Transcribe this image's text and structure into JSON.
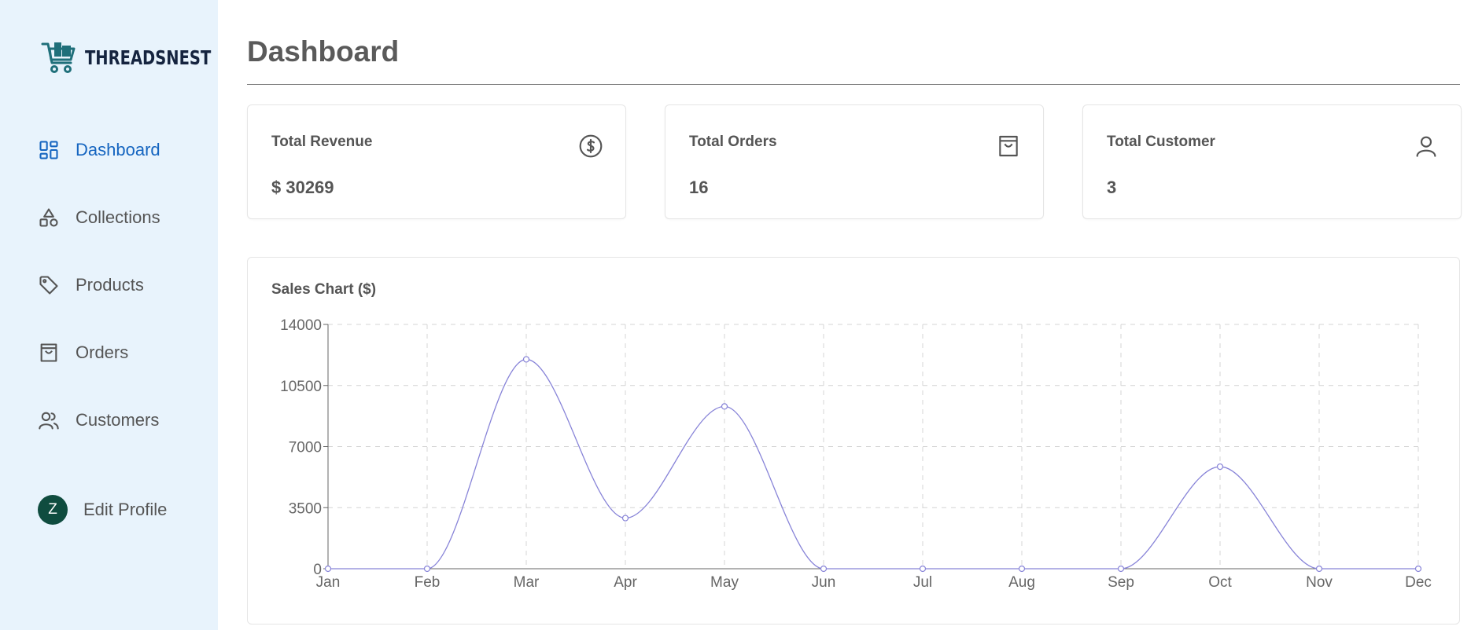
{
  "brand": {
    "name": "THREADSNEST",
    "logo_icon": "shopping-cart-icon"
  },
  "sidebar": {
    "items": [
      {
        "label": "Dashboard",
        "icon": "dashboard-grid-icon",
        "active": true
      },
      {
        "label": "Collections",
        "icon": "shapes-icon",
        "active": false
      },
      {
        "label": "Products",
        "icon": "tag-icon",
        "active": false
      },
      {
        "label": "Orders",
        "icon": "shopping-bag-icon",
        "active": false
      },
      {
        "label": "Customers",
        "icon": "users-icon",
        "active": false
      }
    ],
    "profile": {
      "initial": "Z",
      "label": "Edit Profile"
    }
  },
  "header": {
    "title": "Dashboard"
  },
  "cards": [
    {
      "label": "Total Revenue",
      "value": "$ 30269",
      "icon": "dollar-circle-icon"
    },
    {
      "label": "Total Orders",
      "value": "16",
      "icon": "shopping-bag-icon"
    },
    {
      "label": "Total Customer",
      "value": "3",
      "icon": "user-icon"
    }
  ],
  "colors": {
    "sidebar_bg": "#e8f3fc",
    "active": "#1565c0",
    "line": "#8884d8",
    "avatar": "#0f4c3f"
  },
  "chart_data": {
    "type": "line",
    "title": "Sales Chart ($)",
    "categories": [
      "Jan",
      "Feb",
      "Mar",
      "Apr",
      "May",
      "Jun",
      "Jul",
      "Aug",
      "Sep",
      "Oct",
      "Nov",
      "Dec"
    ],
    "values": [
      0,
      0,
      12000,
      2900,
      9300,
      0,
      0,
      0,
      0,
      5850,
      0,
      0
    ],
    "yticks": [
      0,
      3500,
      7000,
      10500,
      14000
    ],
    "ylim": [
      0,
      14000
    ],
    "grid": true,
    "curve": "smooth"
  }
}
